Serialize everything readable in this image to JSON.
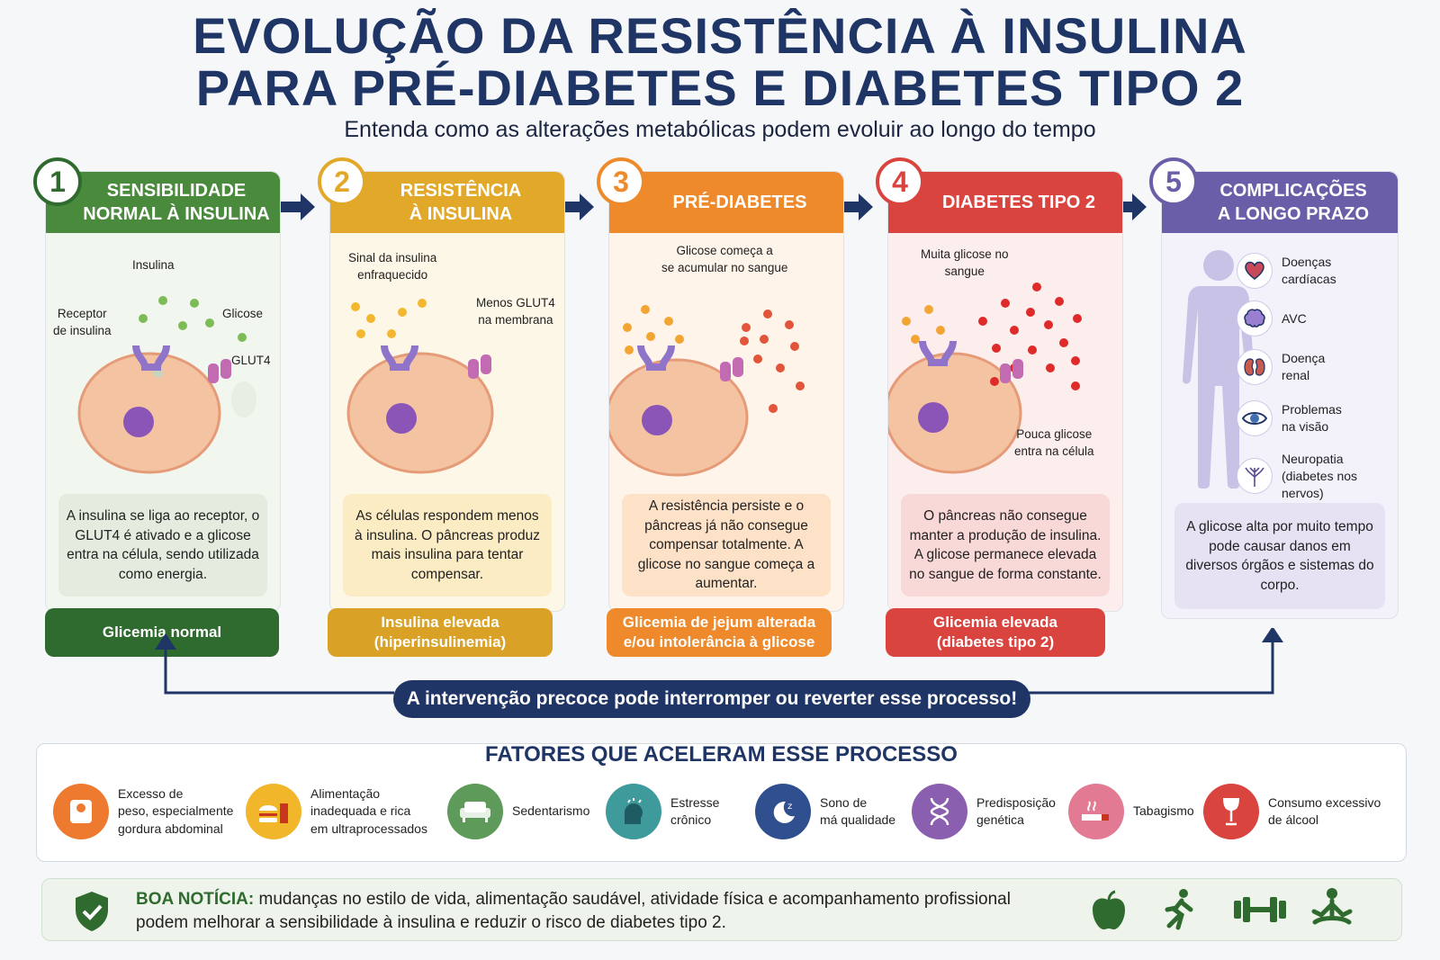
{
  "title": {
    "line1": "EVOLUÇÃO DA RESISTÊNCIA À INSULINA",
    "line2": "PARA PRÉ-DIABETES E DIABETES TIPO 2",
    "subtitle": "Entenda como as alterações metabólicas podem evoluir ao longo do tempo"
  },
  "stages": [
    {
      "number": "1",
      "title": "SENSIBILIDADE\nNORMAL À INSULINA",
      "color": "#4a8a3c",
      "labels": {
        "insulina": "Insulina",
        "receptor": "Receptor\nde insulina",
        "glicose": "Glicose",
        "glut4": "GLUT4"
      },
      "description": "A insulina se liga ao receptor, o GLUT4 é ativado e a glicose entra na célula, sendo utilizada como energia.",
      "result": "Glicemia normal"
    },
    {
      "number": "2",
      "title": "RESISTÊNCIA\nÀ INSULINA",
      "color": "#e2a82a",
      "labels": {
        "sinal": "Sinal da insulina\nenfraquecido",
        "menos": "Menos GLUT4\nna membrana"
      },
      "description": "As células respondem menos à insulina. O pâncreas produz mais insulina para tentar compensar.",
      "result": "Insulina elevada\n(hiperinsulinemia)"
    },
    {
      "number": "3",
      "title": "PRÉ-DIABETES",
      "color": "#ee8a2b",
      "labels": {
        "acumular": "Glicose começa a\nse acumular no sangue"
      },
      "description": "A resistência persiste e o pâncreas já não consegue compensar totalmente. A glicose no sangue começa a aumentar.",
      "result": "Glicemia de jejum alterada\ne/ou intolerância à glicose"
    },
    {
      "number": "4",
      "title": "DIABETES TIPO 2",
      "color": "#d9443f",
      "labels": {
        "muita": "Muita glicose no\nsangue",
        "pouca": "Pouca glicose\nentra na célula"
      },
      "description": "O pâncreas não consegue manter a produção de insulina. A glicose permanece elevada no sangue de forma constante.",
      "result": "Glicemia elevada\n(diabetes tipo 2)"
    },
    {
      "number": "5",
      "title": "COMPLICAÇÕES\nA LONGO PRAZO",
      "color": "#6b5ea8",
      "complications": [
        {
          "icon": "heart-icon",
          "label": "Doenças\ncardíacas"
        },
        {
          "icon": "brain-icon",
          "label": "AVC"
        },
        {
          "icon": "kidney-icon",
          "label": "Doença\nrenal"
        },
        {
          "icon": "eye-icon",
          "label": "Problemas\nna visão"
        },
        {
          "icon": "nerve-icon",
          "label": "Neuropatia\n(diabetes nos\nnervos)"
        }
      ],
      "description": "A glicose alta por muito tempo pode causar danos em diversos órgãos e sistemas do corpo."
    }
  ],
  "banner": "A intervenção precoce pode interromper ou reverter esse processo!",
  "factors": {
    "title": "FATORES QUE ACELERAM ESSE PROCESSO",
    "items": [
      {
        "icon": "scale-icon",
        "label": "Excesso de\npeso, especialmente\ngordura abdominal",
        "color": "#ee7a30"
      },
      {
        "icon": "burger-icon",
        "label": "Alimentação\ninadequada e rica\nem ultraprocessados",
        "color": "#f2b62b"
      },
      {
        "icon": "sofa-icon",
        "label": "Sedentarismo",
        "color": "#5e9b5a"
      },
      {
        "icon": "stress-head-icon",
        "label": "Estresse\ncrônico",
        "color": "#3f9b9b"
      },
      {
        "icon": "moon-icon",
        "label": "Sono de\nmá qualidade",
        "color": "#2f4f8f"
      },
      {
        "icon": "dna-icon",
        "label": "Predisposição\ngenética",
        "color": "#8a5fb0"
      },
      {
        "icon": "cigarette-icon",
        "label": "Tabagismo",
        "color": "#e27a94"
      },
      {
        "icon": "wine-icon",
        "label": "Consumo excessivo\nde álcool",
        "color": "#d9443f"
      }
    ]
  },
  "good_news": {
    "label": "BOA NOTÍCIA:",
    "text": " mudanças no estilo de vida, alimentação saudável, atividade física e acompanhamento profissional",
    "text2": "podem melhorar a sensibilidade à insulina e reduzir o risco de diabetes tipo 2.",
    "icons": [
      "apple-icon",
      "running-icon",
      "dumbbell-icon",
      "meditation-icon"
    ]
  }
}
